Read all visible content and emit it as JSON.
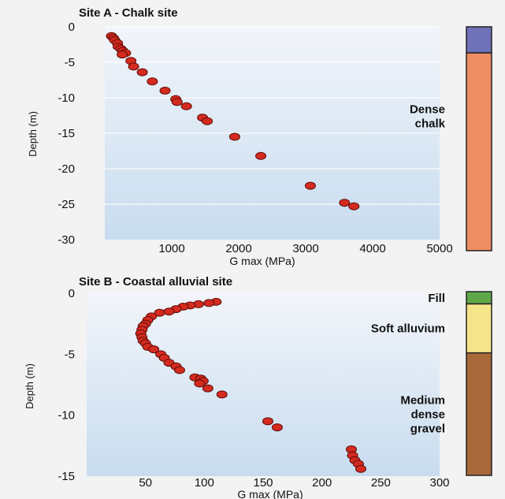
{
  "colors": {
    "panel_top": "#f2f5fa",
    "panel_bottom": "#c8dcef",
    "point_fill": "#d42a1f",
    "point_edge": "#5a0d08",
    "background": "#f3f3f4"
  },
  "chart_data": [
    {
      "type": "scatter",
      "title": "Site A - Chalk site",
      "xlabel": "G max (MPa)",
      "ylabel": "Depth (m)",
      "xlim": [
        0,
        5000
      ],
      "ylim": [
        -30,
        0
      ],
      "x_ticks": [
        "1000",
        "2000",
        "3000",
        "4000",
        "5000"
      ],
      "y_ticks": [
        "0",
        "-5",
        "-10",
        "-15",
        "-20",
        "-25",
        "-30"
      ],
      "grid": "horizontal",
      "series": [
        {
          "x": [
            100,
            130,
            150,
            190,
            200,
            240,
            270,
            310,
            260,
            390,
            430,
            560,
            710,
            900,
            1060,
            1080,
            1220,
            1460,
            1530,
            1940,
            2330,
            3070,
            3580,
            3720
          ],
          "y": [
            -1.3,
            -1.6,
            -1.9,
            -2.3,
            -2.8,
            -3.1,
            -3.4,
            -3.7,
            -3.9,
            -4.8,
            -5.6,
            -6.4,
            -7.7,
            -9.0,
            -10.2,
            -10.6,
            -11.2,
            -12.8,
            -13.3,
            -15.5,
            -18.2,
            -22.4,
            -24.8,
            -25.3
          ]
        }
      ],
      "soil_column": [
        {
          "label": "",
          "top": 0,
          "bottom": -3.5,
          "color": "#6f72b8"
        },
        {
          "label": "Dense\nchalk",
          "top": -3.5,
          "bottom": -30,
          "color": "#ee8d62"
        }
      ]
    },
    {
      "type": "scatter",
      "title": "Site B - Coastal alluvial site",
      "xlabel": "G max (MPa)",
      "ylabel": "Depth (m)",
      "xlim": [
        0,
        300
      ],
      "ylim": [
        -15,
        0
      ],
      "x_ticks": [
        "50",
        "100",
        "150",
        "200",
        "250",
        "300"
      ],
      "y_ticks": [
        "0",
        "-5",
        "-10",
        "-15"
      ],
      "grid": "none",
      "series": [
        {
          "x": [
            110,
            104,
            95,
            88,
            82,
            76,
            70,
            62,
            55,
            52,
            50,
            48,
            47,
            46,
            47,
            48,
            50,
            52,
            57,
            63,
            66,
            70,
            76,
            79,
            92,
            97,
            99,
            96,
            103,
            115,
            154,
            162,
            225,
            226,
            228,
            231,
            233
          ],
          "y": [
            -0.7,
            -0.8,
            -0.9,
            -1.0,
            -1.1,
            -1.3,
            -1.5,
            -1.6,
            -1.9,
            -2.2,
            -2.5,
            -2.7,
            -3.0,
            -3.3,
            -3.6,
            -3.9,
            -4.1,
            -4.4,
            -4.6,
            -5.0,
            -5.3,
            -5.7,
            -6.0,
            -6.3,
            -6.9,
            -7.0,
            -7.2,
            -7.4,
            -7.8,
            -8.3,
            -10.5,
            -11.0,
            -12.8,
            -13.3,
            -13.7,
            -14.0,
            -14.4
          ]
        }
      ],
      "soil_column": [
        {
          "label": "Fill",
          "top": 0,
          "bottom": -1.0,
          "color": "#5fa84a"
        },
        {
          "label": "Soft alluvium",
          "top": -1.0,
          "bottom": -5.0,
          "color": "#f5e58a"
        },
        {
          "label": "Medium\ndense\ngravel",
          "top": -5.0,
          "bottom": -15,
          "color": "#a9683a"
        }
      ]
    }
  ]
}
